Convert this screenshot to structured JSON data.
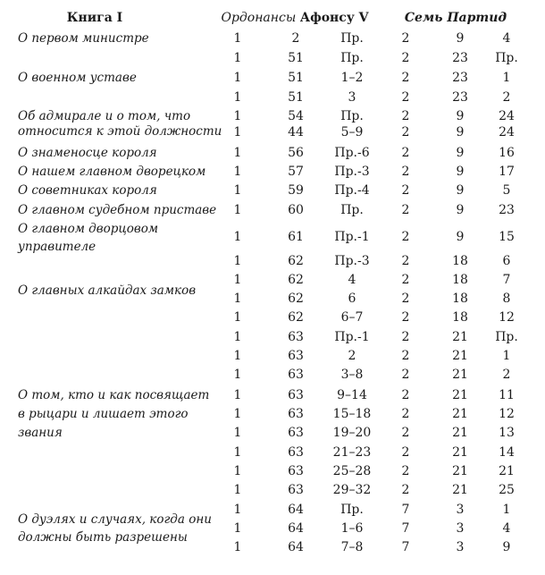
{
  "header": {
    "book": "Книга I",
    "ordinances_italic": "Ордонансы",
    "ordinances_rest": "Афонсу V",
    "partidas": "Семь Партид"
  },
  "labels": [
    {
      "lines": [
        "О первом министре"
      ]
    },
    {
      "lines": [
        "О военном уставе"
      ]
    },
    {
      "lines": [
        "Об адмирале и о том, что",
        "относится к этой должности"
      ]
    },
    {
      "lines": [
        "О знаменосце короля"
      ]
    },
    {
      "lines": [
        "О нашем главном дворецком"
      ]
    },
    {
      "lines": [
        "О советниках короля"
      ]
    },
    {
      "lines": [
        "О главном судебном приставе"
      ]
    },
    {
      "lines": [
        "О главном дворцовом",
        "управителе"
      ]
    },
    {
      "lines": [
        "О главных алкайдах замков"
      ]
    },
    {
      "lines": [
        "О том, кто и как посвящает",
        "в рыцари и лишает этого",
        "звания"
      ]
    },
    {
      "lines": [
        "О дуэлях и случаях, когда они",
        "должны быть разрешены"
      ]
    }
  ],
  "rows": [
    [
      "1",
      "2",
      "Пр.",
      "2",
      "9",
      "4"
    ],
    [
      "1",
      "51",
      "Пр.",
      "2",
      "23",
      "Пр."
    ],
    [
      "1",
      "51",
      "1–2",
      "2",
      "23",
      "1"
    ],
    [
      "1",
      "51",
      "3",
      "2",
      "23",
      "2"
    ],
    [
      "1",
      "54",
      "Пр.",
      "2",
      "9",
      "24"
    ],
    [
      "1",
      "44",
      "5–9",
      "2",
      "9",
      "24"
    ],
    [
      "1",
      "56",
      "Пр.-6",
      "2",
      "9",
      "16"
    ],
    [
      "1",
      "57",
      "Пр.-3",
      "2",
      "9",
      "17"
    ],
    [
      "1",
      "59",
      "Пр.-4",
      "2",
      "9",
      "5"
    ],
    [
      "1",
      "60",
      "Пр.",
      "2",
      "9",
      "23"
    ],
    [
      "1",
      "61",
      "Пр.-1",
      "2",
      "9",
      "15"
    ],
    [
      "1",
      "62",
      "Пр.-3",
      "2",
      "18",
      "6"
    ],
    [
      "1",
      "62",
      "4",
      "2",
      "18",
      "7"
    ],
    [
      "1",
      "62",
      "6",
      "2",
      "18",
      "8"
    ],
    [
      "1",
      "62",
      "6–7",
      "2",
      "18",
      "12"
    ],
    [
      "1",
      "63",
      "Пр.-1",
      "2",
      "21",
      "Пр."
    ],
    [
      "1",
      "63",
      "2",
      "2",
      "21",
      "1"
    ],
    [
      "1",
      "63",
      "3–8",
      "2",
      "21",
      "2"
    ],
    [
      "1",
      "63",
      "9–14",
      "2",
      "21",
      "11"
    ],
    [
      "1",
      "63",
      "15–18",
      "2",
      "21",
      "12"
    ],
    [
      "1",
      "63",
      "19–20",
      "2",
      "21",
      "13"
    ],
    [
      "1",
      "63",
      "21–23",
      "2",
      "21",
      "14"
    ],
    [
      "1",
      "63",
      "25–28",
      "2",
      "21",
      "21"
    ],
    [
      "1",
      "63",
      "29–32",
      "2",
      "21",
      "25"
    ],
    [
      "1",
      "64",
      "Пр.",
      "7",
      "3",
      "1"
    ],
    [
      "1",
      "64",
      "1–6",
      "7",
      "3",
      "4"
    ],
    [
      "1",
      "64",
      "7–8",
      "7",
      "3",
      "9"
    ]
  ]
}
